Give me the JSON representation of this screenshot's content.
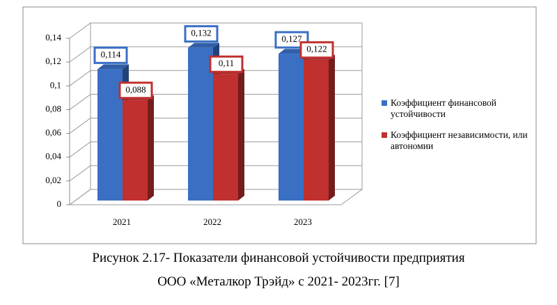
{
  "chart_data": {
    "type": "bar3d",
    "categories": [
      "2021",
      "2022",
      "2023"
    ],
    "series": [
      {
        "name": "Коэффициент финансовой устойчивости",
        "color": "#3a6fc4",
        "values": [
          0.114,
          0.132,
          0.127
        ],
        "value_labels": [
          "0,114",
          "0,132",
          "0,127"
        ]
      },
      {
        "name": "Коэффициент независимости, или автономии",
        "color": "#c0302f",
        "values": [
          0.088,
          0.11,
          0.122
        ],
        "value_labels": [
          "0,088",
          "0,11",
          "0,122"
        ]
      }
    ],
    "ylim": [
      0,
      0.14
    ],
    "yticks": [
      0,
      {
        "value": 0.02,
        "label": "0,02"
      },
      {
        "value": 0.04,
        "label": "0,04"
      },
      {
        "value": 0.06,
        "label": "0,06"
      },
      {
        "value": 0.08,
        "label": "0,08"
      },
      {
        "value": 0.1,
        "label": "0,1"
      },
      {
        "value": 0.12,
        "label": "0,12"
      },
      {
        "value": 0.14,
        "label": "0,14"
      }
    ],
    "grid": true,
    "legend": "right",
    "caption": [
      "Рисунок 2.17- Показатели финансовой устойчивости предприятия",
      "ООО «Металкор Трэйд» с 2021- 2023гг. [7]"
    ]
  }
}
